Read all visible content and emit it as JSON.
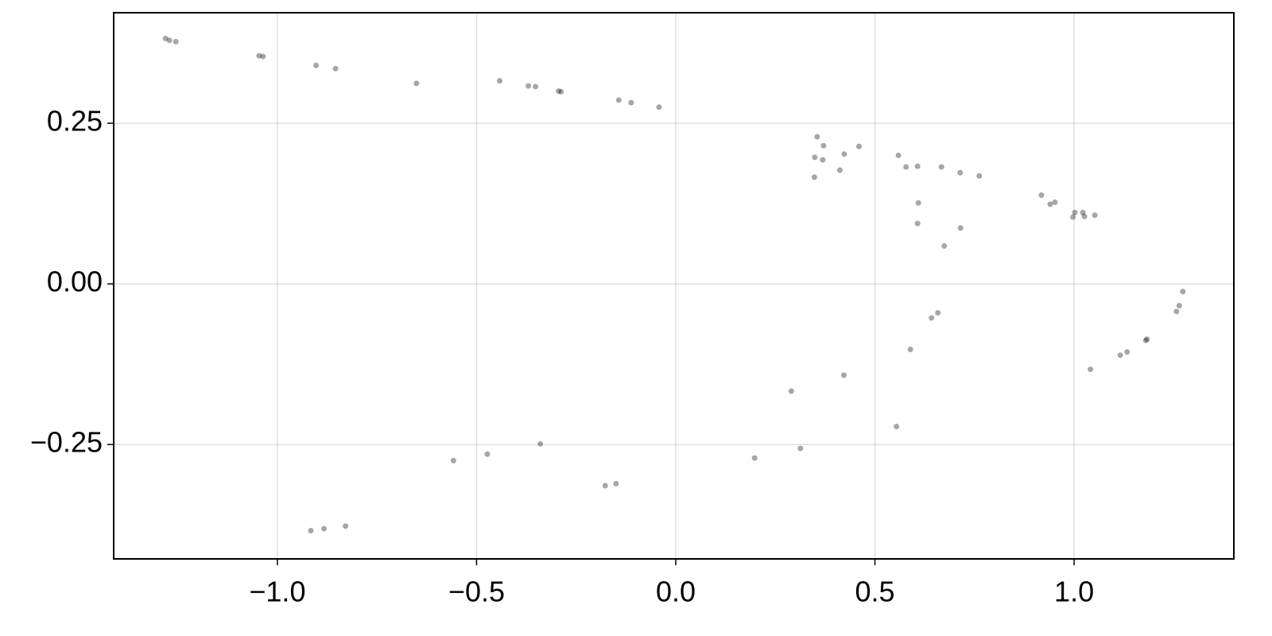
{
  "chart_data": {
    "type": "scatter",
    "x": [
      0.554,
      0.348,
      0.997,
      -0.288,
      1.183,
      -1.046,
      -0.177,
      0.642,
      0.369,
      1.002,
      -0.294,
      1.18,
      -1.036,
      -0.15,
      0.658,
      0.349,
      1.026,
      -0.37,
      1.116,
      -0.854,
      0.313,
      0.607,
      0.578,
      0.714,
      0.46,
      0.918,
      -0.042,
      1.273,
      -1.281,
      -0.916,
      -0.558,
      0.29,
      0.715,
      0.371,
      1.022,
      -0.352,
      1.133,
      -0.903,
      0.198,
      0.674,
      0.423,
      0.952,
      -0.143,
      1.257,
      -1.255,
      -0.829,
      -0.34,
      0.589,
      0.412,
      0.94,
      -0.112,
      1.264,
      -1.271,
      -0.883,
      -0.473,
      0.422,
      0.609,
      0.607,
      0.667,
      0.559,
      0.762,
      0.355,
      1.052,
      -0.442,
      1.041,
      -0.651
    ],
    "series": [
      {
        "color": "#000000",
        "values": [
          -0.222,
          0.166,
          0.104,
          0.299,
          -0.086,
          0.355,
          -0.314,
          -0.053,
          0.193,
          0.111,
          0.3,
          -0.088,
          0.354,
          -0.311,
          -0.045,
          0.197,
          0.105,
          0.308,
          -0.111,
          0.335,
          -0.256,
          0.094,
          0.182,
          0.173,
          0.214,
          0.138,
          0.275,
          -0.012,
          0.382,
          -0.384,
          -0.275,
          -0.167,
          0.087,
          0.215,
          0.111,
          0.307,
          -0.106,
          0.34,
          -0.271,
          0.059,
          0.202,
          0.127,
          0.286,
          -0.043,
          0.377,
          -0.377,
          -0.249,
          -0.102,
          0.177,
          0.124,
          0.282,
          -0.034,
          0.379,
          -0.381,
          -0.265,
          -0.142,
          0.126,
          0.183,
          0.182,
          0.2,
          0.168,
          0.229,
          0.107,
          0.316,
          -0.133,
          0.312
        ]
      }
    ],
    "xlim": [
      -1.411,
      1.401
    ],
    "ylim": [
      -0.428,
      0.422
    ],
    "xticks": [
      {
        "value": -1.0,
        "label": "−1.0"
      },
      {
        "value": -0.5,
        "label": "−0.5"
      },
      {
        "value": 0.0,
        "label": "0.0"
      },
      {
        "value": 0.5,
        "label": "0.5"
      },
      {
        "value": 1.0,
        "label": "1.0"
      }
    ],
    "yticks": [
      {
        "value": -0.25,
        "label": "−0.25"
      },
      {
        "value": 0.0,
        "label": "0.00"
      },
      {
        "value": 0.25,
        "label": "0.25"
      }
    ],
    "grid": true
  }
}
